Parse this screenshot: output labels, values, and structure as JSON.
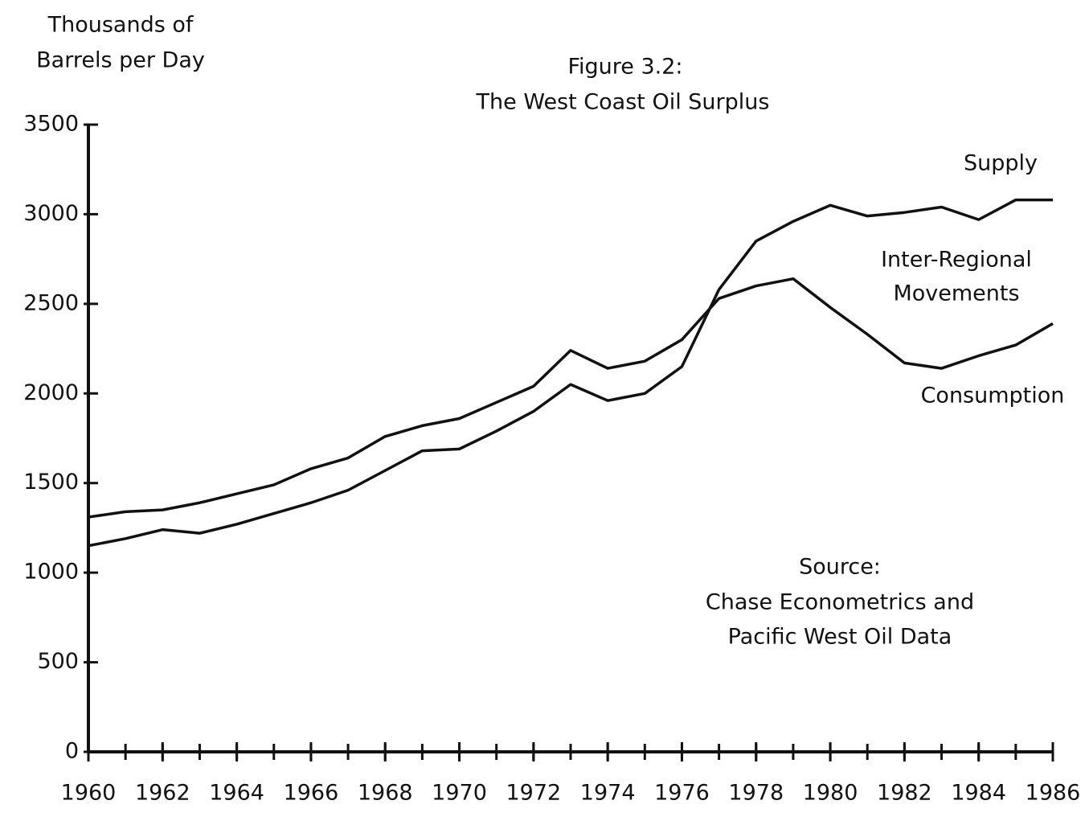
{
  "chart_data": {
    "type": "line",
    "title": "Figure 3.2:",
    "subtitle": "The West Coast Oil Surplus",
    "y_label": [
      "Thousands of",
      "Barrels per Day"
    ],
    "x": [
      1960,
      1961,
      1962,
      1963,
      1964,
      1965,
      1966,
      1967,
      1968,
      1969,
      1970,
      1971,
      1972,
      1973,
      1974,
      1975,
      1976,
      1977,
      1978,
      1979,
      1980,
      1981,
      1982,
      1983,
      1984,
      1985,
      1986
    ],
    "series": [
      {
        "name": "Supply",
        "color": "#111111",
        "values": [
          1150,
          1190,
          1240,
          1220,
          1270,
          1330,
          1390,
          1460,
          1570,
          1680,
          1690,
          1790,
          1900,
          2050,
          1960,
          2000,
          2150,
          2580,
          2850,
          2960,
          3050,
          2990,
          3010,
          3040,
          2970,
          3080,
          3080
        ]
      },
      {
        "name": "Consumption",
        "color": "#111111",
        "values": [
          1310,
          1340,
          1350,
          1390,
          1440,
          1490,
          1580,
          1640,
          1760,
          1820,
          1860,
          1950,
          2040,
          2240,
          2140,
          2180,
          2300,
          2530,
          2600,
          2640,
          2480,
          2330,
          2170,
          2140,
          2210,
          2270,
          2390
        ]
      }
    ],
    "annotations": [
      {
        "text": [
          "Inter-Regional",
          "Movements"
        ]
      },
      {
        "text": [
          "Source:",
          "Chase Econometrics and",
          "Pacific West Oil Data"
        ]
      }
    ],
    "xlim": [
      1960,
      1986
    ],
    "xticks": [
      1960,
      1962,
      1964,
      1966,
      1968,
      1970,
      1972,
      1974,
      1976,
      1978,
      1980,
      1982,
      1984,
      1986
    ],
    "ylim": [
      0,
      3500
    ],
    "yticks": [
      0,
      500,
      1000,
      1500,
      2000,
      2500,
      3000,
      3500
    ],
    "grid": false
  }
}
